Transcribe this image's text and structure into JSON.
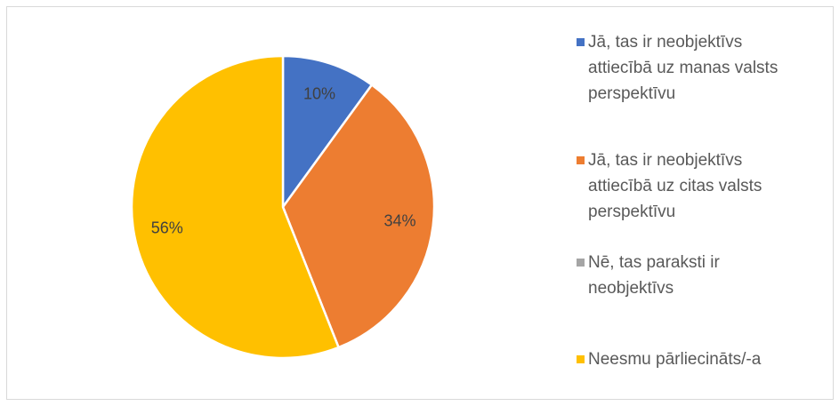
{
  "chart_data": {
    "type": "pie",
    "categories": [
      "Jā, tas ir neobjektīvs attiecībā uz manas valsts perspektīvu",
      "Jā, tas ir neobjektīvs attiecībā uz citas valsts perspektīvu",
      "Nē, tas paraksti ir neobjektīvs",
      "Neesmu pārliecināts/-a"
    ],
    "values": [
      10,
      34,
      0,
      56
    ],
    "value_labels": [
      "10%",
      "34%",
      null,
      "56%"
    ],
    "colors": [
      "#4472c4",
      "#ed7d31",
      "#a5a5a5",
      "#ffc000"
    ],
    "legend": "right"
  }
}
